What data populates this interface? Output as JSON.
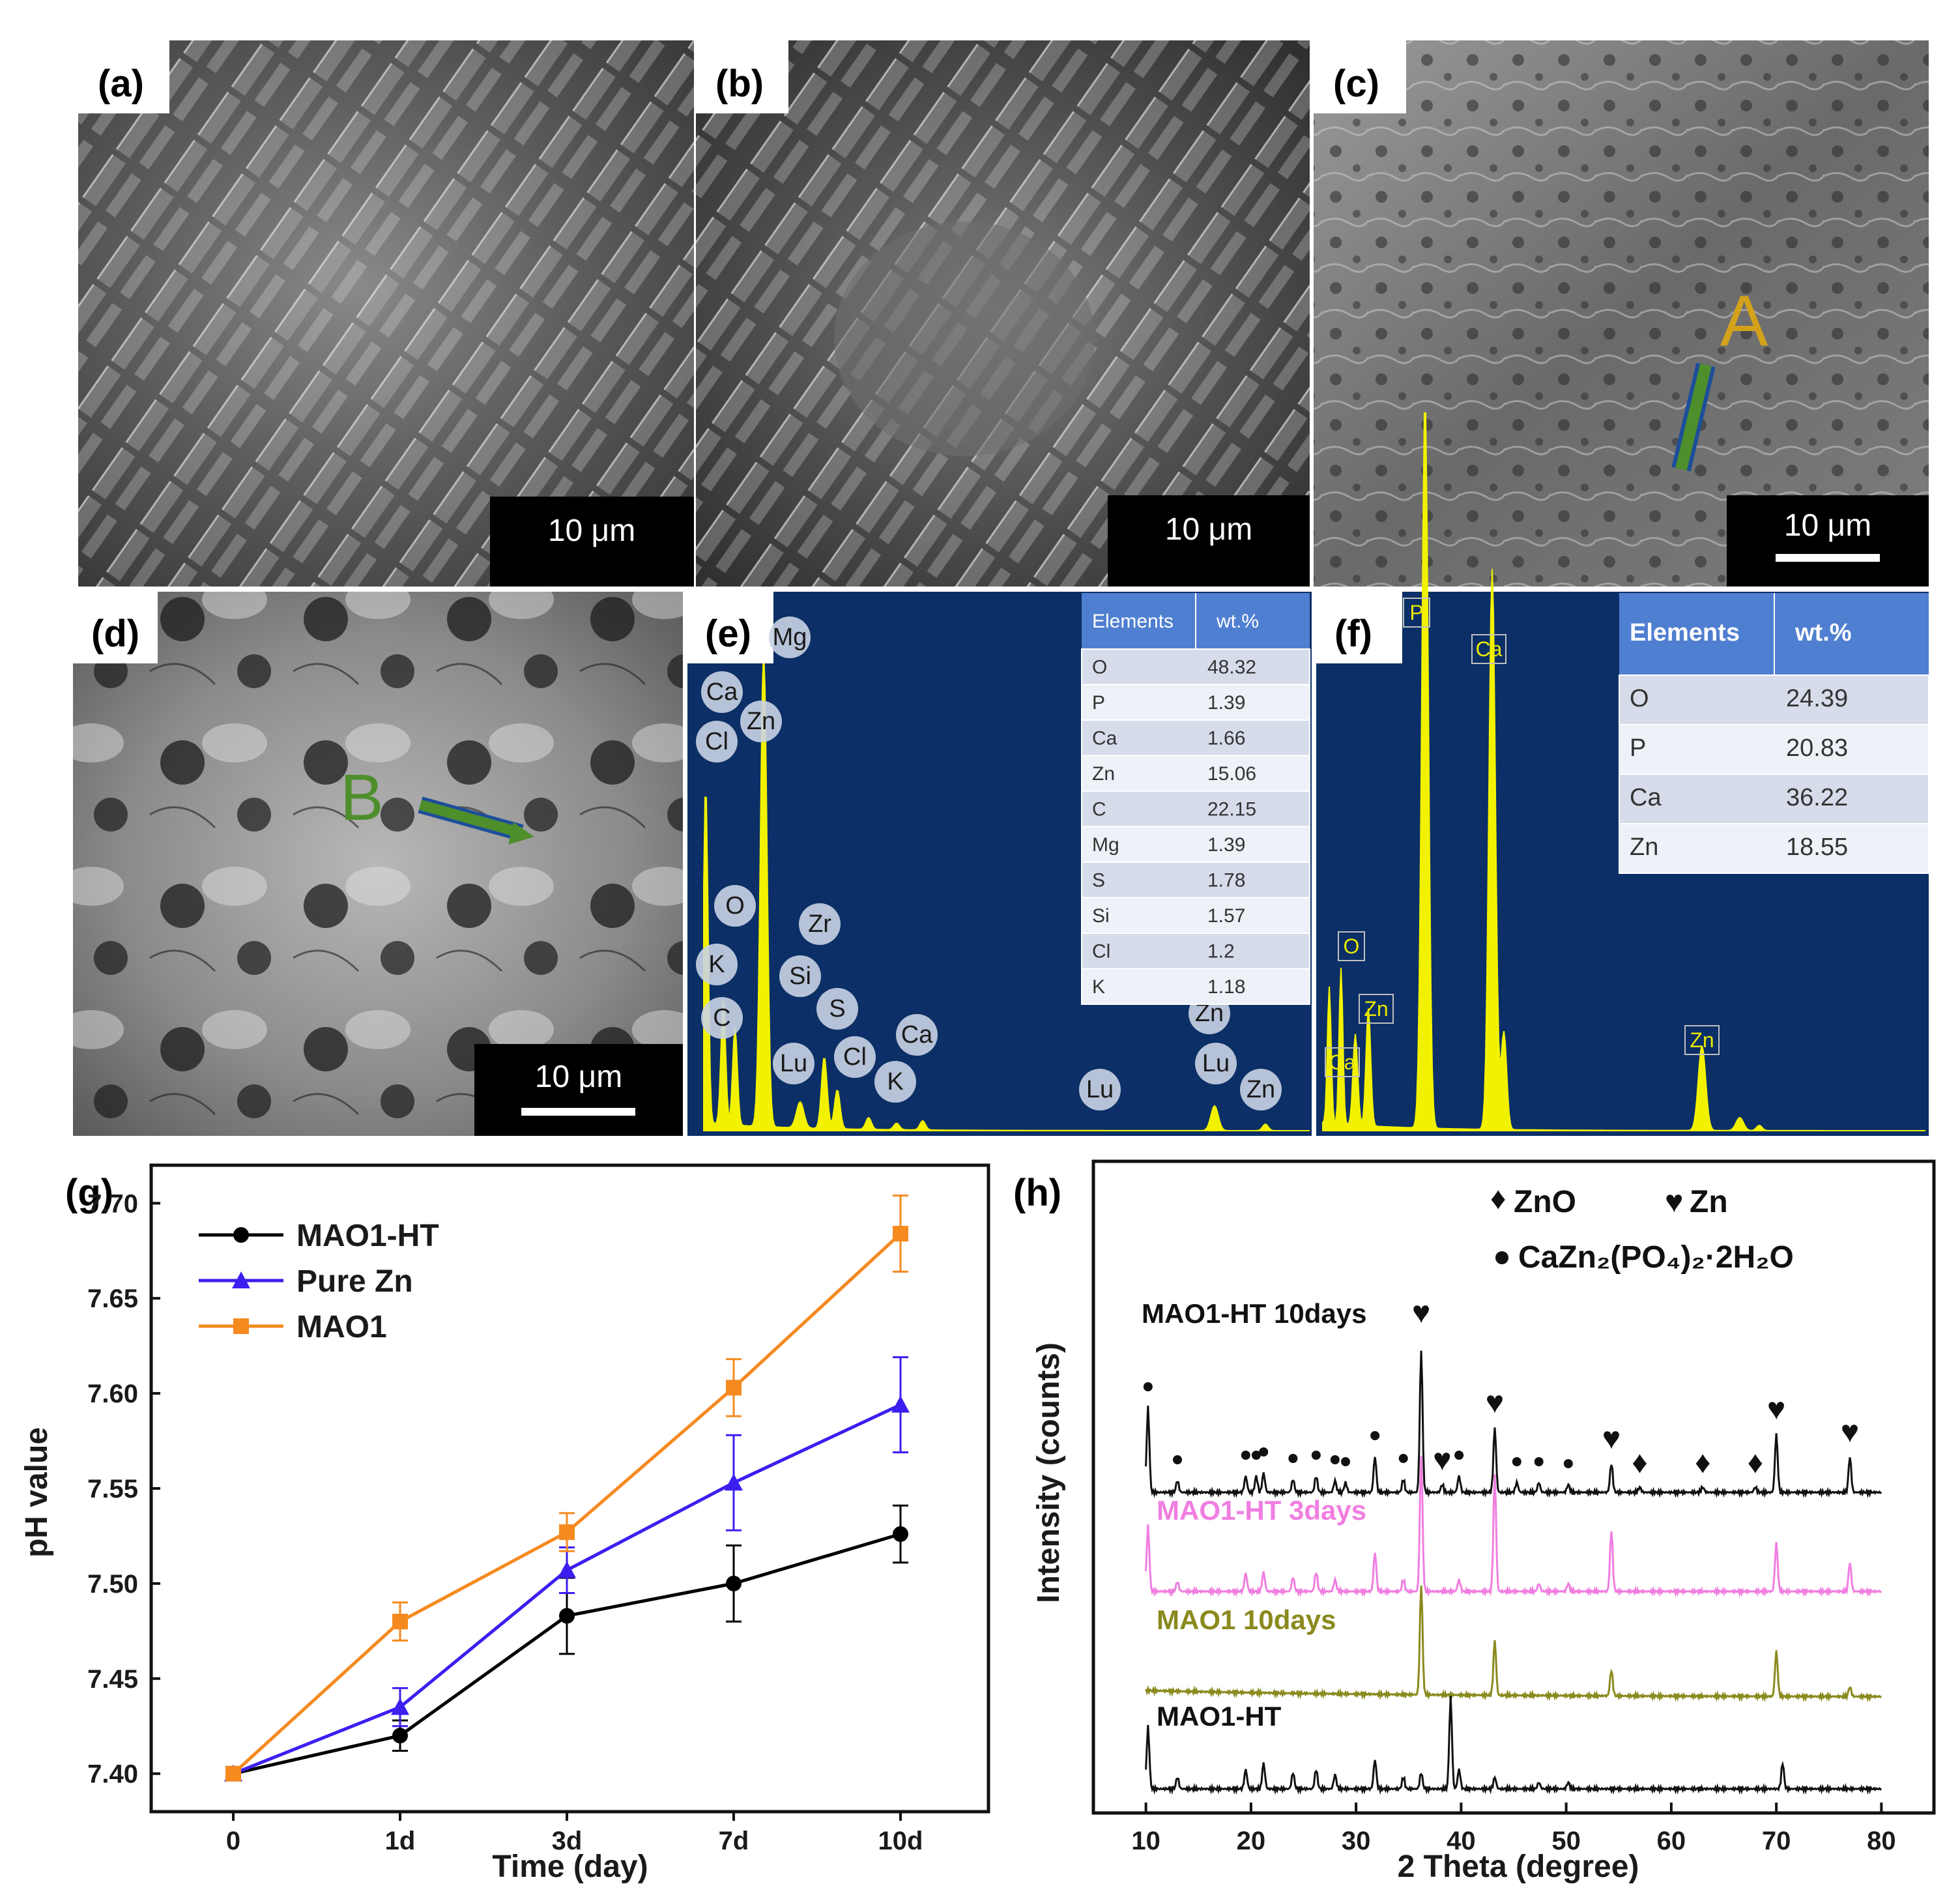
{
  "panels": {
    "a": {
      "label": "(a)",
      "scalebar": "10 μm"
    },
    "b": {
      "label": "(b)",
      "scalebar": "10 μm"
    },
    "c": {
      "label": "(c)",
      "scalebar": "10 μm",
      "marker": "A"
    },
    "d": {
      "label": "(d)",
      "scalebar": "10 μm",
      "marker": "B"
    },
    "e": {
      "label": "(e)",
      "peak_labels": [
        "Mg",
        "Ca",
        "Cl",
        "Zn",
        "O",
        "K",
        "C",
        "Zr",
        "Si",
        "S",
        "Lu",
        "Cl",
        "K",
        "Ca",
        "Lu",
        "Zn",
        "Lu",
        "Zn"
      ],
      "table": {
        "headers": [
          "Elements",
          "wt.%"
        ],
        "rows": [
          [
            "O",
            "48.32"
          ],
          [
            "P",
            "1.39"
          ],
          [
            "Ca",
            "1.66"
          ],
          [
            "Zn",
            "15.06"
          ],
          [
            "C",
            "22.15"
          ],
          [
            "Mg",
            "1.39"
          ],
          [
            "S",
            "1.78"
          ],
          [
            "Si",
            "1.57"
          ],
          [
            "Cl",
            "1.2"
          ],
          [
            "K",
            "1.18"
          ]
        ]
      }
    },
    "f": {
      "label": "(f)",
      "peak_labels": [
        "P",
        "Ca",
        "O",
        "Zn",
        "Ca",
        "Zn"
      ],
      "table": {
        "headers": [
          "Elements",
          "wt.%"
        ],
        "rows": [
          [
            "O",
            "24.39"
          ],
          [
            "P",
            "20.83"
          ],
          [
            "Ca",
            "36.22"
          ],
          [
            "Zn",
            "18.55"
          ]
        ]
      }
    },
    "g": {
      "label": "(g)"
    },
    "h": {
      "label": "(h)"
    }
  },
  "chart_data": [
    {
      "type": "line",
      "panel": "(g)",
      "categories": [
        "0",
        "1d",
        "3d",
        "7d",
        "10d"
      ],
      "xlabel": "Time (day)",
      "ylabel": "pH value",
      "ylim": [
        7.38,
        7.72
      ],
      "yticks": [
        "7.40",
        "7.45",
        "7.50",
        "7.55",
        "7.60",
        "7.65",
        "7.70"
      ],
      "legend_position": "top-left",
      "series": [
        {
          "name": "MAO1-HT",
          "color": "#000000",
          "marker": "circle",
          "values": [
            7.4,
            7.42,
            7.483,
            7.5,
            7.526
          ],
          "errors": [
            0.0,
            0.008,
            0.02,
            0.02,
            0.015
          ]
        },
        {
          "name": "Pure Zn",
          "color": "#3b1ff0",
          "marker": "triangle",
          "values": [
            7.4,
            7.435,
            7.507,
            7.553,
            7.594
          ],
          "errors": [
            0.0,
            0.01,
            0.012,
            0.025,
            0.025
          ]
        },
        {
          "name": "MAO1",
          "color": "#f58a1f",
          "marker": "square",
          "values": [
            7.4,
            7.48,
            7.527,
            7.603,
            7.684
          ],
          "errors": [
            0.0,
            0.01,
            0.01,
            0.015,
            0.02
          ]
        }
      ]
    },
    {
      "type": "line",
      "panel": "(h)",
      "xlabel": "2 Theta (degree)",
      "ylabel": "Intensity (counts)",
      "xlim": [
        5,
        85
      ],
      "xticks": [
        10,
        20,
        30,
        40,
        50,
        60,
        70,
        80
      ],
      "legend": [
        "ZnO",
        "Zn",
        "CaZn₂(PO₄)₂·2H₂O"
      ],
      "series": [
        {
          "name": "MAO1-HT 10days",
          "color": "#111111",
          "peaks": [
            [
              10.2,
              130
            ],
            [
              13,
              18
            ],
            [
              19.5,
              25
            ],
            [
              20.5,
              25
            ],
            [
              21.2,
              30
            ],
            [
              24,
              20
            ],
            [
              26.2,
              25
            ],
            [
              28,
              18
            ],
            [
              29,
              15
            ],
            [
              31.8,
              55
            ],
            [
              34.5,
              20
            ],
            [
              36.2,
              220
            ],
            [
              38.2,
              12
            ],
            [
              39.8,
              25
            ],
            [
              43.2,
              100
            ],
            [
              45.3,
              15
            ],
            [
              47.4,
              15
            ],
            [
              50.2,
              12
            ],
            [
              54.3,
              45
            ],
            [
              57,
              8
            ],
            [
              63,
              8
            ],
            [
              68,
              8
            ],
            [
              70,
              90
            ],
            [
              77,
              55
            ]
          ]
        },
        {
          "name": "MAO1-HT 3days",
          "color": "#f07ee0",
          "peaks": [
            [
              10.2,
              100
            ],
            [
              13,
              15
            ],
            [
              19.5,
              28
            ],
            [
              21.2,
              30
            ],
            [
              24,
              22
            ],
            [
              26.2,
              30
            ],
            [
              28,
              18
            ],
            [
              31.8,
              60
            ],
            [
              34.5,
              18
            ],
            [
              36.2,
              210
            ],
            [
              39.8,
              18
            ],
            [
              43.2,
              180
            ],
            [
              47.4,
              12
            ],
            [
              50.2,
              12
            ],
            [
              54.3,
              95
            ],
            [
              70,
              75
            ],
            [
              77,
              45
            ]
          ]
        },
        {
          "name": "MAO1 10days",
          "color": "#8a8a1e",
          "peaks": [
            [
              36.2,
              170
            ],
            [
              43.2,
              85
            ],
            [
              54.3,
              40
            ],
            [
              70,
              70
            ],
            [
              77,
              15
            ]
          ]
        },
        {
          "name": "MAO1-HT",
          "color": "#111111",
          "peaks": [
            [
              10.2,
              95
            ],
            [
              13,
              18
            ],
            [
              19.5,
              30
            ],
            [
              21.2,
              40
            ],
            [
              24,
              25
            ],
            [
              26.2,
              30
            ],
            [
              28,
              22
            ],
            [
              31.8,
              45
            ],
            [
              34.5,
              18
            ],
            [
              36.2,
              25
            ],
            [
              39,
              140
            ],
            [
              39.8,
              30
            ],
            [
              43.2,
              18
            ],
            [
              47.4,
              10
            ],
            [
              50.2,
              10
            ],
            [
              70.6,
              40
            ]
          ]
        }
      ],
      "annotations": [
        {
          "text": "MAO1-HT 10days",
          "color": "#111111"
        },
        {
          "text": "MAO1-HT 3days",
          "color": "#f07ee0"
        },
        {
          "text": "MAO1 10days",
          "color": "#8a8a1e"
        },
        {
          "text": "MAO1-HT",
          "color": "#111111"
        }
      ]
    }
  ]
}
